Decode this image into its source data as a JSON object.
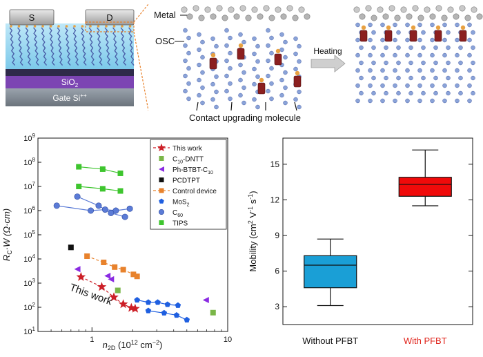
{
  "schematic": {
    "source_label": "S",
    "drain_label": "D",
    "dielectric_label": "SiO",
    "dielectric_sub": "2",
    "gate_label": "Gate Si",
    "gate_sup": "++",
    "metal_label": "Metal",
    "osc_label": "OSC",
    "heating_label": "Heating",
    "caption": "Contact upgrading molecule"
  },
  "chart_data": [
    {
      "type": "scatter",
      "axes": "log-log",
      "xlabel": "n",
      "xlabel_sub": "2D",
      "xlabel_units": " (10",
      "xlabel_exp": "12",
      "xlabel_tail": " cm",
      "xlabel_exp2": "−2",
      "xlabel_close": ")",
      "ylabel": "R",
      "ylabel_sub": "C",
      "ylabel_tail": "·W (Ω·cm)",
      "xlim": [
        0.4,
        10
      ],
      "ylim": [
        10,
        1000000000
      ],
      "xticks": [
        {
          "v": 1,
          "label": "1"
        },
        {
          "v": 10,
          "label": "10"
        }
      ],
      "yticks": [
        {
          "v": 10,
          "base": "10",
          "exp": "1"
        },
        {
          "v": 100,
          "base": "10",
          "exp": "2"
        },
        {
          "v": 1000,
          "base": "10",
          "exp": "3"
        },
        {
          "v": 10000,
          "base": "10",
          "exp": "4"
        },
        {
          "v": 100000,
          "base": "10",
          "exp": "5"
        },
        {
          "v": 1000000,
          "base": "10",
          "exp": "6"
        },
        {
          "v": 10000000,
          "base": "10",
          "exp": "7"
        },
        {
          "v": 100000000,
          "base": "10",
          "exp": "8"
        },
        {
          "v": 1000000000,
          "base": "10",
          "exp": "9"
        }
      ],
      "annotation": "This work",
      "series": [
        {
          "name": "This work",
          "name_sub": "",
          "name_tail": "",
          "marker": "star",
          "color": "#cc1f27",
          "dashed": true,
          "points": [
            [
              0.83,
              1800
            ],
            [
              1.18,
              700
            ],
            [
              1.45,
              260
            ],
            [
              1.7,
              135
            ],
            [
              1.95,
              95
            ],
            [
              2.08,
              88
            ]
          ],
          "segments": [
            [
              0,
              5
            ]
          ]
        },
        {
          "name": "C",
          "name_sub": "10",
          "name_tail": "-DNTT",
          "marker": "square",
          "color": "#7ab648",
          "dashed": false,
          "points": [
            [
              1.55,
              500
            ],
            [
              7.8,
              60
            ]
          ],
          "segments": []
        },
        {
          "name": "Ph-BTBT-C",
          "name_sub": "10",
          "name_tail": "",
          "marker": "triangle-left",
          "color": "#8a2be2",
          "dashed": false,
          "points": [
            [
              0.78,
              3800
            ],
            [
              1.3,
              2000
            ],
            [
              1.38,
              1450
            ],
            [
              6.9,
              200
            ]
          ],
          "segments": []
        },
        {
          "name": "PCDTPT",
          "name_sub": "",
          "name_tail": "",
          "marker": "square",
          "color": "#111111",
          "dashed": false,
          "points": [
            [
              0.7,
              30000
            ]
          ],
          "segments": []
        },
        {
          "name": "Control device",
          "name_sub": "",
          "name_tail": "",
          "marker": "square",
          "color": "#e8822c",
          "dashed": true,
          "points": [
            [
              0.92,
              13000
            ],
            [
              1.22,
              7200
            ],
            [
              1.47,
              4600
            ],
            [
              1.7,
              3600
            ],
            [
              2.02,
              2300
            ],
            [
              2.15,
              1900
            ]
          ],
          "segments": [
            [
              0,
              5
            ]
          ]
        },
        {
          "name": "MoS",
          "name_sub": "2",
          "name_tail": "",
          "marker": "pentagon",
          "color": "#1f5fe0",
          "dashed": false,
          "points": [
            [
              2.15,
              200
            ],
            [
              2.6,
              160
            ],
            [
              3.05,
              160
            ],
            [
              3.6,
              130
            ],
            [
              4.3,
              120
            ],
            [
              2.6,
              72
            ],
            [
              3.4,
              58
            ],
            [
              4.2,
              47
            ],
            [
              5.0,
              30
            ]
          ],
          "segments": [
            [
              0,
              4
            ],
            [
              5,
              8
            ]
          ]
        },
        {
          "name": "C",
          "name_sub": "60",
          "name_tail": "",
          "marker": "circle",
          "color": "#5b7bd6",
          "dashed": false,
          "points": [
            [
              0.55,
              1600000
            ],
            [
              0.98,
              1000000
            ],
            [
              1.25,
              1100000
            ],
            [
              1.5,
              1000000
            ],
            [
              1.9,
              1200000
            ],
            [
              0.78,
              3800000
            ],
            [
              1.12,
              1600000
            ],
            [
              1.38,
              800000
            ],
            [
              1.75,
              550000
            ]
          ],
          "segments": [
            [
              0,
              4
            ],
            [
              5,
              8
            ]
          ]
        },
        {
          "name": "TIPS",
          "name_sub": "",
          "name_tail": "",
          "marker": "square",
          "color": "#3ec52e",
          "dashed": false,
          "points": [
            [
              0.8,
              65000000
            ],
            [
              1.2,
              52000000
            ],
            [
              1.62,
              35000000
            ],
            [
              0.8,
              10000000
            ],
            [
              1.2,
              8000000
            ],
            [
              1.62,
              6500000
            ]
          ],
          "segments": [
            [
              0,
              2
            ],
            [
              3,
              5
            ]
          ]
        }
      ]
    },
    {
      "type": "box",
      "ylabel": "Mobility (cm",
      "ylabel_exp1": "2",
      "ylabel_mid": " V",
      "ylabel_exp2": "-1",
      "ylabel_mid2": " s",
      "ylabel_exp3": "-1",
      "ylabel_close": ")",
      "ylim": [
        1.5,
        17.2
      ],
      "yticks": [
        3,
        6,
        9,
        12,
        15
      ],
      "categories": [
        "Without PFBT",
        "With PFBT"
      ],
      "category_colors": [
        "#111111",
        "#e0241b"
      ],
      "boxes": [
        {
          "category": "Without PFBT",
          "whisker_low": 3.1,
          "q1": 4.6,
          "median": 6.5,
          "q3": 7.3,
          "whisker_high": 8.7,
          "color": "#1a9fd6"
        },
        {
          "category": "With PFBT",
          "whisker_low": 11.5,
          "q1": 12.3,
          "median": 13.3,
          "q3": 13.9,
          "whisker_high": 16.2,
          "color": "#f00a0a"
        }
      ]
    }
  ]
}
